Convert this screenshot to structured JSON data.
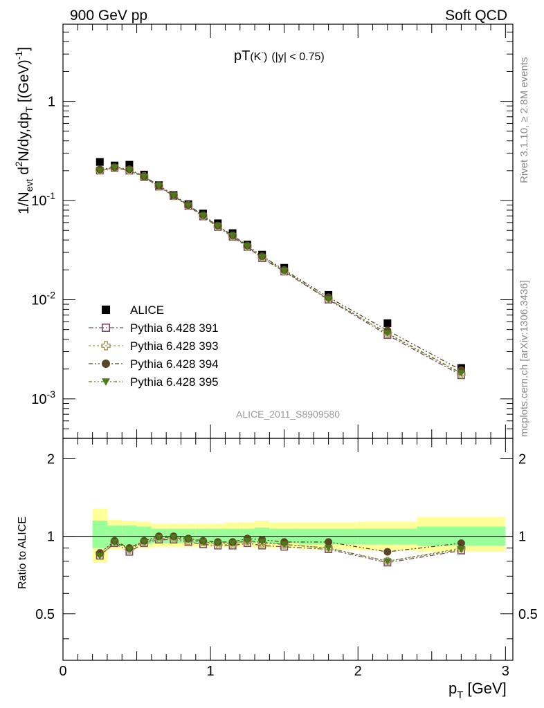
{
  "header": {
    "left": "900 GeV pp",
    "right": "Soft QCD",
    "observable_main": "pT",
    "observable_sub": "(K",
    "observable_sup": "-",
    "observable_close": ")",
    "observable_cut": "(|y| < 0.75)"
  },
  "side_labels": {
    "rivet": "Rivet 3.1.10, ≥ 2.8M events",
    "source": "mcplots.cern.ch [arXiv:1306.3436]"
  },
  "analysis_id": "ALICE_2011_S8909580",
  "y_axis_main": {
    "prefix": "1/N",
    "sub1": "evt",
    "mid1": " d",
    "sup1": "2",
    "mid2": "N/dy,dp",
    "sub2": "T",
    "mid3": " [(GeV)",
    "sup2": "-1",
    "suffix": "]"
  },
  "y_axis_ratio": {
    "label": "Ratio to ALICE"
  },
  "x_axis": {
    "main": "p",
    "sub": "T",
    "unit": " [GeV]"
  },
  "main_tick_labels": [
    {
      "value": 1,
      "text": "1"
    },
    {
      "value": 0.1,
      "base": "10",
      "exp": "-1"
    },
    {
      "value": 0.01,
      "base": "10",
      "exp": "-2"
    },
    {
      "value": 0.001,
      "base": "10",
      "exp": "-3"
    }
  ],
  "ratio_tick_labels": [
    {
      "value": 2,
      "text": "2"
    },
    {
      "value": 1,
      "text": "1"
    },
    {
      "value": 0.5,
      "text": "0.5"
    }
  ],
  "x_tick_labels": [
    {
      "value": 0,
      "text": "0"
    },
    {
      "value": 1,
      "text": "1"
    },
    {
      "value": 2,
      "text": "2"
    },
    {
      "value": 3,
      "text": "3"
    }
  ],
  "legend": [
    {
      "label": "ALICE",
      "marker": "filled-square",
      "color": "#000000"
    },
    {
      "label": "Pythia 6.428 391",
      "marker": "open-square",
      "color": "#7b4a62"
    },
    {
      "label": "Pythia 6.428 393",
      "marker": "open-cross",
      "color": "#a89a5c"
    },
    {
      "label": "Pythia 6.428 394",
      "marker": "filled-circle",
      "color": "#5c4526"
    },
    {
      "label": "Pythia 6.428 395",
      "marker": "filled-triangle-down",
      "color": "#4e7a1a"
    }
  ],
  "chart_data": {
    "type": "scatter",
    "x_range": [
      0,
      3.05
    ],
    "main_y_range": [
      0.0004,
      6
    ],
    "main_y_scale": "log",
    "ratio_y_range": [
      0.33,
      2.4
    ],
    "ratio_y_scale": "log",
    "band_colors": {
      "inner": "#99ff99",
      "outer": "#ffff99"
    },
    "bins": [
      {
        "lo": 0.2,
        "hi": 0.3
      },
      {
        "lo": 0.3,
        "hi": 0.4
      },
      {
        "lo": 0.4,
        "hi": 0.5
      },
      {
        "lo": 0.5,
        "hi": 0.6
      },
      {
        "lo": 0.6,
        "hi": 0.7
      },
      {
        "lo": 0.7,
        "hi": 0.8
      },
      {
        "lo": 0.8,
        "hi": 0.9
      },
      {
        "lo": 0.9,
        "hi": 1.0
      },
      {
        "lo": 1.0,
        "hi": 1.1
      },
      {
        "lo": 1.1,
        "hi": 1.2
      },
      {
        "lo": 1.2,
        "hi": 1.3
      },
      {
        "lo": 1.3,
        "hi": 1.4
      },
      {
        "lo": 1.4,
        "hi": 1.6
      },
      {
        "lo": 1.6,
        "hi": 2.0
      },
      {
        "lo": 2.0,
        "hi": 2.4
      },
      {
        "lo": 2.4,
        "hi": 3.0
      }
    ],
    "x": [
      0.25,
      0.35,
      0.45,
      0.55,
      0.65,
      0.75,
      0.85,
      0.95,
      1.05,
      1.15,
      1.25,
      1.35,
      1.5,
      1.8,
      2.2,
      2.7
    ],
    "ratio_band_inner": [
      [
        0.9,
        1.15
      ],
      [
        0.92,
        1.1
      ],
      [
        0.92,
        1.1
      ],
      [
        0.93,
        1.09
      ],
      [
        0.94,
        1.07
      ],
      [
        0.94,
        1.07
      ],
      [
        0.94,
        1.07
      ],
      [
        0.94,
        1.07
      ],
      [
        0.94,
        1.07
      ],
      [
        0.94,
        1.07
      ],
      [
        0.94,
        1.07
      ],
      [
        0.94,
        1.08
      ],
      [
        0.94,
        1.07
      ],
      [
        0.93,
        1.07
      ],
      [
        0.93,
        1.07
      ],
      [
        0.92,
        1.09
      ]
    ],
    "ratio_band_outer": [
      [
        0.79,
        1.28
      ],
      [
        0.89,
        1.16
      ],
      [
        0.89,
        1.15
      ],
      [
        0.9,
        1.14
      ],
      [
        0.91,
        1.12
      ],
      [
        0.91,
        1.12
      ],
      [
        0.91,
        1.12
      ],
      [
        0.91,
        1.12
      ],
      [
        0.91,
        1.12
      ],
      [
        0.91,
        1.13
      ],
      [
        0.91,
        1.13
      ],
      [
        0.9,
        1.15
      ],
      [
        0.9,
        1.13
      ],
      [
        0.89,
        1.13
      ],
      [
        0.88,
        1.14
      ],
      [
        0.87,
        1.19
      ]
    ],
    "series": [
      {
        "name": "ALICE",
        "marker": "filled-square",
        "color": "#000000",
        "values": [
          0.245,
          0.226,
          0.23,
          0.183,
          0.143,
          0.114,
          0.092,
          0.074,
          0.059,
          0.047,
          0.036,
          0.0285,
          0.021,
          0.0112,
          0.0058,
          0.00205
        ]
      },
      {
        "name": "Pythia 6.428 391",
        "marker": "open-square",
        "color": "#7b4a62",
        "values": [
          0.2,
          0.213,
          0.2,
          0.172,
          0.138,
          0.111,
          0.088,
          0.069,
          0.054,
          0.043,
          0.034,
          0.0262,
          0.0192,
          0.01,
          0.0044,
          0.00173
        ]
      },
      {
        "name": "Pythia 6.428 393",
        "marker": "open-cross",
        "color": "#a89a5c",
        "values": [
          0.202,
          0.214,
          0.202,
          0.174,
          0.14,
          0.112,
          0.089,
          0.07,
          0.055,
          0.044,
          0.0345,
          0.0268,
          0.0195,
          0.0102,
          0.00455,
          0.00178
        ]
      },
      {
        "name": "Pythia 6.428 394",
        "marker": "filled-circle",
        "color": "#5c4526",
        "values": [
          0.206,
          0.217,
          0.207,
          0.175,
          0.142,
          0.114,
          0.09,
          0.071,
          0.056,
          0.0445,
          0.0352,
          0.0275,
          0.02,
          0.0106,
          0.0049,
          0.00195
        ]
      },
      {
        "name": "Pythia 6.428 395",
        "marker": "filled-triangle-down",
        "color": "#4e7a1a",
        "values": [
          0.2,
          0.215,
          0.203,
          0.173,
          0.141,
          0.112,
          0.089,
          0.07,
          0.055,
          0.044,
          0.0345,
          0.0268,
          0.0195,
          0.0101,
          0.0046,
          0.00182
        ]
      }
    ],
    "ratios": [
      {
        "name": "Pythia 6.428 391",
        "values": [
          0.84,
          0.94,
          0.87,
          0.94,
          0.97,
          0.97,
          0.95,
          0.93,
          0.92,
          0.92,
          0.94,
          0.92,
          0.91,
          0.89,
          0.79,
          0.88
        ]
      },
      {
        "name": "Pythia 6.428 393",
        "values": [
          0.86,
          0.95,
          0.89,
          0.95,
          0.98,
          0.98,
          0.96,
          0.95,
          0.93,
          0.93,
          0.96,
          0.94,
          0.93,
          0.9,
          0.8,
          0.9
        ]
      },
      {
        "name": "Pythia 6.428 394",
        "values": [
          0.86,
          0.96,
          0.9,
          0.96,
          1.0,
          1.0,
          0.98,
          0.96,
          0.95,
          0.95,
          0.98,
          0.97,
          0.95,
          0.95,
          0.87,
          0.94
        ]
      },
      {
        "name": "Pythia 6.428 395",
        "values": [
          0.84,
          0.95,
          0.89,
          0.95,
          0.99,
          0.99,
          0.97,
          0.95,
          0.94,
          0.94,
          0.96,
          0.95,
          0.93,
          0.9,
          0.8,
          0.89
        ]
      }
    ]
  }
}
